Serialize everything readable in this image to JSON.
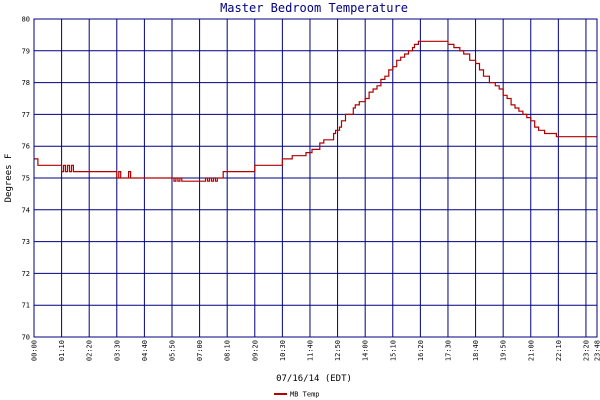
{
  "chart_data": {
    "type": "line",
    "title": "Master Bedroom Temperature",
    "xlabel": "07/16/14 (EDT)",
    "ylabel": "Degrees F",
    "ylim": [
      70,
      80
    ],
    "y_ticks": [
      "70",
      "71",
      "72",
      "73",
      "74",
      "75",
      "76",
      "77",
      "78",
      "79",
      "80"
    ],
    "x_ticks": [
      "00:00",
      "01:10",
      "02:20",
      "03:30",
      "04:40",
      "05:50",
      "07:00",
      "08:10",
      "09:20",
      "10:30",
      "11:40",
      "12:50",
      "14:00",
      "15:10",
      "16:20",
      "17:30",
      "18:40",
      "19:50",
      "21:00",
      "22:10",
      "23:20",
      "23:48"
    ],
    "grid": true,
    "legend_position": "bottom-center",
    "colors": {
      "series": "#b00000",
      "grid": "#000080",
      "title": "#000080"
    },
    "series": [
      {
        "name": "MB Temp",
        "x": [
          "00:00",
          "00:10",
          "01:05",
          "01:10",
          "01:15",
          "01:20",
          "01:25",
          "01:30",
          "01:35",
          "01:40",
          "01:45",
          "03:25",
          "03:30",
          "03:35",
          "03:40",
          "03:45",
          "03:50",
          "03:55",
          "04:00",
          "04:05",
          "04:10",
          "05:50",
          "05:55",
          "06:00",
          "06:05",
          "06:10",
          "06:15",
          "06:20",
          "06:30",
          "06:35",
          "06:40",
          "07:10",
          "07:15",
          "07:20",
          "07:25",
          "07:30",
          "07:35",
          "07:40",
          "07:45",
          "07:50",
          "08:00",
          "09:20",
          "10:30",
          "10:55",
          "11:30",
          "11:45",
          "12:05",
          "12:15",
          "12:40",
          "12:45",
          "12:55",
          "13:00",
          "13:10",
          "13:30",
          "13:35",
          "13:45",
          "14:00",
          "14:10",
          "14:20",
          "14:30",
          "14:40",
          "14:50",
          "15:00",
          "15:10",
          "15:20",
          "15:30",
          "15:40",
          "15:50",
          "16:00",
          "16:05",
          "16:15",
          "16:25",
          "16:35",
          "16:45",
          "17:00",
          "17:15",
          "17:30",
          "17:45",
          "18:00",
          "18:10",
          "18:25",
          "18:40",
          "18:50",
          "19:00",
          "19:15",
          "19:30",
          "19:40",
          "19:50",
          "20:00",
          "20:10",
          "20:20",
          "20:30",
          "20:40",
          "20:50",
          "21:00",
          "21:10",
          "21:20",
          "21:35",
          "21:50",
          "22:05",
          "22:20",
          "22:35",
          "22:50",
          "23:10",
          "23:48"
        ],
        "values": [
          75.6,
          75.4,
          75.4,
          75.2,
          75.4,
          75.2,
          75.4,
          75.2,
          75.4,
          75.2,
          75.2,
          75.2,
          75.0,
          75.2,
          75.0,
          75.0,
          75.0,
          75.0,
          75.2,
          75.0,
          75.0,
          75.0,
          74.9,
          75.0,
          74.9,
          75.0,
          74.9,
          74.9,
          74.9,
          74.9,
          74.9,
          74.9,
          75.0,
          74.9,
          75.0,
          74.9,
          75.0,
          74.9,
          75.0,
          75.0,
          75.2,
          75.4,
          75.6,
          75.7,
          75.8,
          75.9,
          76.1,
          76.2,
          76.4,
          76.5,
          76.6,
          76.8,
          77.0,
          77.2,
          77.3,
          77.4,
          77.5,
          77.7,
          77.8,
          77.9,
          78.1,
          78.2,
          78.4,
          78.5,
          78.7,
          78.8,
          78.9,
          79.0,
          79.1,
          79.2,
          79.3,
          79.3,
          79.3,
          79.3,
          79.3,
          79.3,
          79.2,
          79.1,
          79.0,
          78.9,
          78.7,
          78.6,
          78.4,
          78.2,
          78.0,
          77.9,
          77.8,
          77.6,
          77.5,
          77.3,
          77.2,
          77.1,
          77.0,
          76.9,
          76.8,
          76.6,
          76.5,
          76.4,
          76.4,
          76.3,
          76.3,
          76.3,
          76.3,
          76.3,
          76.3
        ]
      }
    ]
  }
}
